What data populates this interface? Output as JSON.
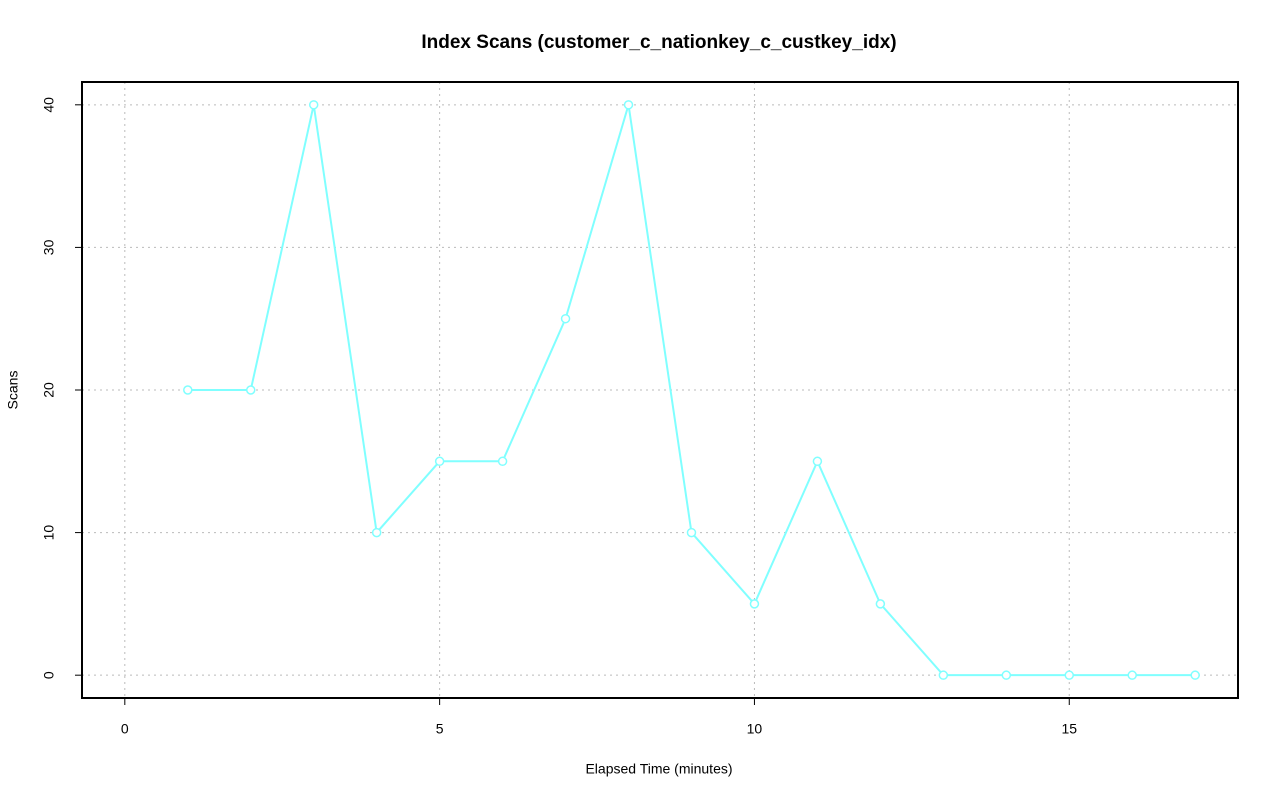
{
  "chart_data": {
    "type": "line",
    "title": "Index Scans (customer_c_nationkey_c_custkey_idx)",
    "x_label": "Elapsed Time (minutes)",
    "y_label": "Scans",
    "x": [
      1,
      2,
      3,
      4,
      5,
      6,
      7,
      8,
      9,
      10,
      11,
      12,
      13,
      14,
      15,
      16,
      17
    ],
    "series": [
      {
        "color": "#80ffff",
        "values": [
          20,
          20,
          40,
          10,
          15,
          15,
          25,
          40,
          10,
          5,
          15,
          5,
          0,
          0,
          0,
          0,
          0
        ]
      }
    ],
    "xlim": [
      -0.68,
      17.68
    ],
    "ylim": [
      -1.6,
      41.6
    ],
    "xticks": [
      0,
      5,
      10,
      15
    ],
    "yticks": [
      0,
      10,
      20,
      30,
      40
    ],
    "grid": true
  }
}
